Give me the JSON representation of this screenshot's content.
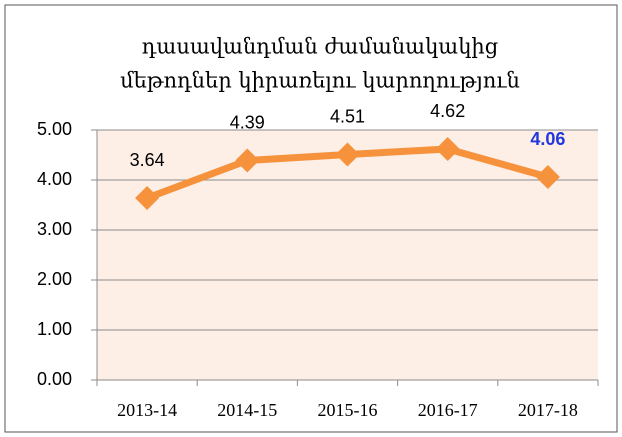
{
  "chart_data": {
    "type": "line",
    "title": [
      "դասավանդման ժամանակակից",
      "մեթոդներ կիրառելու  կարողություն"
    ],
    "categories": [
      "2013-14",
      "2014-15",
      "2015-16",
      "2016-17",
      "2017-18"
    ],
    "series": [
      {
        "name": null,
        "color": "#f6923c",
        "values": [
          3.64,
          4.39,
          4.51,
          4.62,
          4.06
        ]
      }
    ],
    "label_colors": [
      "#000000",
      "#000000",
      "#000000",
      "#000000",
      "#2138e0"
    ],
    "ylim": [
      0,
      5
    ],
    "yticks": [
      {
        "value": 0,
        "label": "0.00"
      },
      {
        "value": 1,
        "label": "1.00"
      },
      {
        "value": 2,
        "label": "2.00"
      },
      {
        "value": 3,
        "label": "3.00"
      },
      {
        "value": 4,
        "label": "4.00"
      },
      {
        "value": 5,
        "label": "5.00"
      }
    ],
    "grid": true,
    "plot_background": "#fdeee6"
  }
}
